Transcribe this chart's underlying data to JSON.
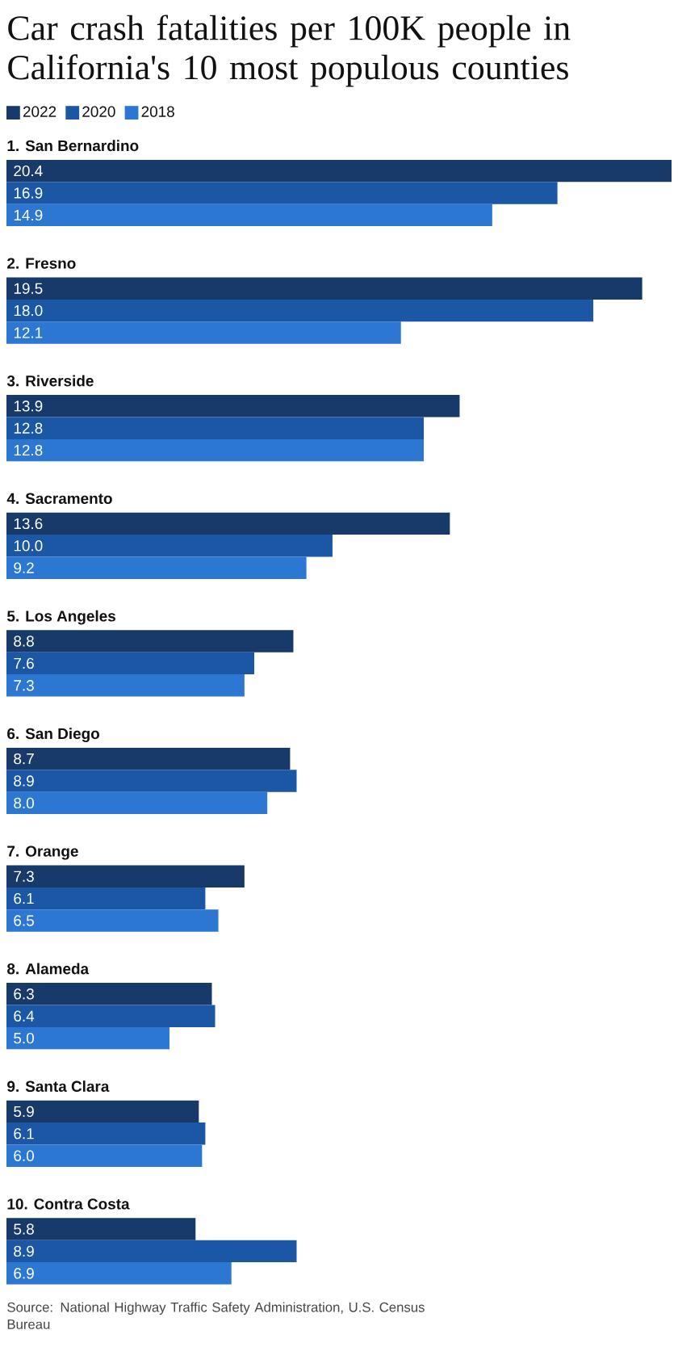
{
  "chart_data": {
    "type": "bar",
    "orientation": "horizontal",
    "title": "Car crash fatalities per 100K people in California's 10 most populous counties",
    "categories": [
      "1. San Bernardino",
      "2. Fresno",
      "3. Riverside",
      "4. Sacramento",
      "5. Los Angeles",
      "6. San Diego",
      "7. Orange",
      "8. Alameda",
      "9. Santa Clara",
      "10. Contra Costa"
    ],
    "series": [
      {
        "name": "2022",
        "color": "#173a6b",
        "values": [
          20.4,
          19.5,
          13.9,
          13.6,
          8.8,
          8.7,
          7.3,
          6.3,
          5.9,
          5.8
        ],
        "value_labels": [
          "20.4",
          "19.5",
          "13.9",
          "13.6",
          "8.8",
          "8.7",
          "7.3",
          "6.3",
          "5.9",
          "5.8"
        ]
      },
      {
        "name": "2020",
        "color": "#1b57a5",
        "values": [
          16.9,
          18.0,
          12.8,
          10.0,
          7.6,
          8.9,
          6.1,
          6.4,
          6.1,
          8.9
        ],
        "value_labels": [
          "16.9",
          "18.0",
          "12.8",
          "10.0",
          "7.6",
          "8.9",
          "6.1",
          "6.4",
          "6.1",
          "8.9"
        ]
      },
      {
        "name": "2018",
        "color": "#2c77d2",
        "values": [
          14.9,
          12.1,
          12.8,
          9.2,
          7.3,
          8.0,
          6.5,
          5.0,
          6.0,
          6.9
        ],
        "value_labels": [
          "14.9",
          "12.1",
          "12.8",
          "9.2",
          "7.3",
          "8.0",
          "6.5",
          "5.0",
          "6.0",
          "6.9"
        ]
      }
    ],
    "legend": "top left",
    "annotations": [
      "Source: National Highway Traffic Safety Administration, U.S. Census Bureau"
    ]
  }
}
